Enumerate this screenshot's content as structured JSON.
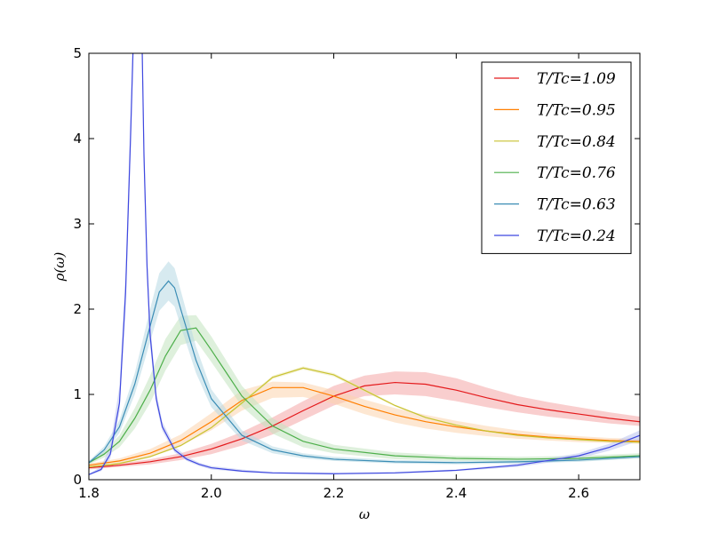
{
  "chart_data": {
    "type": "line",
    "title": "",
    "xlabel": "ω",
    "ylabel": "ρ(ω)",
    "xlim": [
      1.8,
      2.7
    ],
    "ylim": [
      0,
      5
    ],
    "xticks": [
      "1.8",
      "2.0",
      "2.2",
      "2.4",
      "2.6"
    ],
    "yticks": [
      "0",
      "1",
      "2",
      "3",
      "4",
      "5"
    ],
    "grid": false,
    "legend_position": "top-right",
    "series": [
      {
        "name": "T/Tc=1.09",
        "color": "#e41a1c",
        "band_color": "#f4a5a6",
        "x": [
          1.8,
          1.85,
          1.9,
          1.95,
          2.0,
          2.05,
          2.1,
          2.15,
          2.2,
          2.25,
          2.3,
          2.35,
          2.4,
          2.45,
          2.5,
          2.55,
          2.6,
          2.65,
          2.7
        ],
        "y": [
          0.14,
          0.17,
          0.21,
          0.27,
          0.36,
          0.48,
          0.63,
          0.81,
          0.98,
          1.1,
          1.14,
          1.12,
          1.05,
          0.96,
          0.88,
          0.82,
          0.77,
          0.72,
          0.68
        ],
        "lower": [
          0.12,
          0.15,
          0.18,
          0.23,
          0.3,
          0.4,
          0.53,
          0.7,
          0.87,
          0.98,
          1.0,
          0.98,
          0.92,
          0.85,
          0.79,
          0.74,
          0.7,
          0.66,
          0.63
        ],
        "upper": [
          0.16,
          0.19,
          0.24,
          0.31,
          0.42,
          0.56,
          0.73,
          0.92,
          1.1,
          1.22,
          1.27,
          1.26,
          1.19,
          1.08,
          0.98,
          0.91,
          0.85,
          0.79,
          0.74
        ]
      },
      {
        "name": "T/Tc=0.95",
        "color": "#ff7f00",
        "band_color": "#fcd3ad",
        "x": [
          1.8,
          1.85,
          1.9,
          1.95,
          2.0,
          2.05,
          2.1,
          2.15,
          2.2,
          2.25,
          2.3,
          2.35,
          2.4,
          2.45,
          2.5,
          2.55,
          2.6,
          2.65,
          2.7
        ],
        "y": [
          0.17,
          0.22,
          0.31,
          0.46,
          0.68,
          0.93,
          1.08,
          1.08,
          0.98,
          0.86,
          0.76,
          0.68,
          0.62,
          0.57,
          0.53,
          0.5,
          0.48,
          0.46,
          0.45
        ],
        "lower": [
          0.15,
          0.19,
          0.27,
          0.4,
          0.58,
          0.81,
          0.96,
          0.97,
          0.89,
          0.77,
          0.67,
          0.6,
          0.55,
          0.51,
          0.48,
          0.46,
          0.44,
          0.43,
          0.42
        ],
        "upper": [
          0.19,
          0.25,
          0.36,
          0.53,
          0.78,
          1.05,
          1.15,
          1.14,
          1.05,
          0.94,
          0.84,
          0.76,
          0.69,
          0.63,
          0.58,
          0.54,
          0.51,
          0.49,
          0.48
        ]
      },
      {
        "name": "T/Tc=0.84",
        "color": "#c9c231",
        "band_color": "#ece9b4",
        "x": [
          1.8,
          1.85,
          1.9,
          1.95,
          2.0,
          2.05,
          2.1,
          2.15,
          2.2,
          2.25,
          2.3,
          2.35,
          2.4,
          2.45,
          2.5,
          2.55,
          2.6,
          2.65,
          2.7
        ],
        "y": [
          0.15,
          0.19,
          0.27,
          0.4,
          0.61,
          0.9,
          1.2,
          1.31,
          1.23,
          1.05,
          0.87,
          0.73,
          0.64,
          0.57,
          0.52,
          0.49,
          0.47,
          0.45,
          0.44
        ],
        "lower": [
          0.14,
          0.18,
          0.26,
          0.39,
          0.6,
          0.88,
          1.18,
          1.29,
          1.21,
          1.03,
          0.86,
          0.72,
          0.63,
          0.56,
          0.51,
          0.48,
          0.46,
          0.44,
          0.43
        ],
        "upper": [
          0.16,
          0.2,
          0.28,
          0.41,
          0.62,
          0.92,
          1.22,
          1.33,
          1.25,
          1.07,
          0.88,
          0.74,
          0.65,
          0.58,
          0.53,
          0.5,
          0.48,
          0.46,
          0.45
        ]
      },
      {
        "name": "T/Tc=0.76",
        "color": "#4daf4a",
        "band_color": "#c2e3bf",
        "x": [
          1.8,
          1.825,
          1.85,
          1.875,
          1.9,
          1.925,
          1.95,
          1.975,
          2.0,
          2.05,
          2.1,
          2.15,
          2.2,
          2.3,
          2.4,
          2.5,
          2.6,
          2.7
        ],
        "y": [
          0.2,
          0.3,
          0.45,
          0.72,
          1.05,
          1.45,
          1.75,
          1.78,
          1.52,
          0.98,
          0.63,
          0.45,
          0.36,
          0.28,
          0.25,
          0.24,
          0.25,
          0.28
        ],
        "lower": [
          0.18,
          0.26,
          0.38,
          0.6,
          0.9,
          1.28,
          1.58,
          1.63,
          1.38,
          0.86,
          0.54,
          0.38,
          0.31,
          0.24,
          0.22,
          0.21,
          0.22,
          0.25
        ],
        "upper": [
          0.22,
          0.34,
          0.52,
          0.84,
          1.22,
          1.65,
          1.92,
          1.93,
          1.68,
          1.1,
          0.72,
          0.52,
          0.41,
          0.32,
          0.28,
          0.27,
          0.28,
          0.31
        ]
      },
      {
        "name": "T/Tc=0.63",
        "color": "#3b8db5",
        "band_color": "#b7d9e4",
        "x": [
          1.8,
          1.825,
          1.85,
          1.875,
          1.9,
          1.915,
          1.93,
          1.94,
          1.95,
          1.975,
          2.0,
          2.05,
          2.1,
          2.15,
          2.2,
          2.3,
          2.4,
          2.5,
          2.6,
          2.7
        ],
        "y": [
          0.2,
          0.35,
          0.62,
          1.12,
          1.8,
          2.2,
          2.33,
          2.25,
          2.0,
          1.4,
          0.95,
          0.52,
          0.35,
          0.28,
          0.24,
          0.21,
          0.2,
          0.21,
          0.23,
          0.27
        ],
        "lower": [
          0.18,
          0.31,
          0.55,
          1.0,
          1.62,
          1.98,
          2.1,
          2.03,
          1.8,
          1.25,
          0.85,
          0.46,
          0.31,
          0.25,
          0.22,
          0.19,
          0.18,
          0.19,
          0.21,
          0.25
        ],
        "upper": [
          0.22,
          0.39,
          0.7,
          1.25,
          2.0,
          2.42,
          2.56,
          2.48,
          2.22,
          1.56,
          1.06,
          0.58,
          0.39,
          0.31,
          0.27,
          0.23,
          0.22,
          0.23,
          0.25,
          0.29
        ]
      },
      {
        "name": "T/Tc=0.24",
        "color": "#3f48e0",
        "band_color": "#b9c2ef",
        "x": [
          1.8,
          1.82,
          1.835,
          1.85,
          1.86,
          1.868,
          1.874,
          1.878,
          1.882,
          1.886,
          1.89,
          1.895,
          1.9,
          1.91,
          1.92,
          1.94,
          1.96,
          1.98,
          2.0,
          2.05,
          2.1,
          2.2,
          2.3,
          2.4,
          2.5,
          2.6,
          2.65,
          2.7
        ],
        "y": [
          0.06,
          0.12,
          0.3,
          0.9,
          2.2,
          4.0,
          5.5,
          6.2,
          6.2,
          5.5,
          3.8,
          2.5,
          1.7,
          0.95,
          0.62,
          0.35,
          0.24,
          0.18,
          0.14,
          0.1,
          0.08,
          0.07,
          0.08,
          0.11,
          0.17,
          0.28,
          0.38,
          0.52
        ],
        "lower": [
          0.05,
          0.1,
          0.25,
          0.8,
          2.0,
          3.8,
          5.3,
          6.0,
          6.0,
          5.3,
          3.6,
          2.35,
          1.58,
          0.88,
          0.57,
          0.32,
          0.22,
          0.16,
          0.12,
          0.09,
          0.07,
          0.06,
          0.07,
          0.1,
          0.15,
          0.25,
          0.34,
          0.46
        ],
        "upper": [
          0.07,
          0.15,
          0.4,
          1.1,
          2.45,
          4.3,
          5.8,
          6.5,
          6.5,
          5.8,
          4.1,
          2.7,
          1.85,
          1.03,
          0.68,
          0.39,
          0.27,
          0.2,
          0.16,
          0.12,
          0.09,
          0.08,
          0.09,
          0.12,
          0.19,
          0.31,
          0.42,
          0.58
        ]
      }
    ]
  }
}
